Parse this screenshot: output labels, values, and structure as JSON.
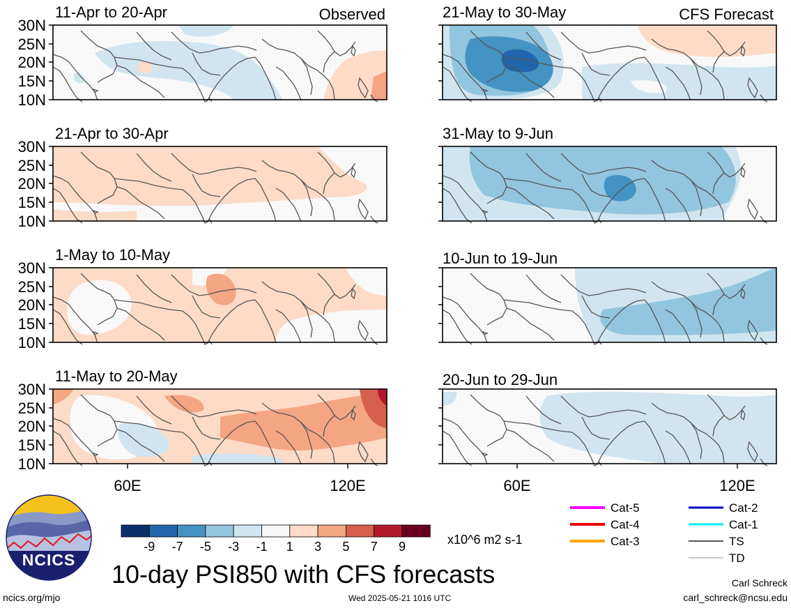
{
  "figure": {
    "title": "10-day PSI850 with CFS forecasts",
    "left_header": "Observed",
    "right_header": "CFS Forecast",
    "author": "Carl Schreck",
    "email": "carl_schreck@ncsu.edu",
    "site": "ncics.org/mjo",
    "timestamp": "Wed 2025-05-21 1016 UTC",
    "logo_text": "NCICS",
    "units": "x10^6 m2 s-1"
  },
  "panels": [
    {
      "label": "11-Apr to 20-Apr",
      "column": "observed"
    },
    {
      "label": "21-Apr to 30-Apr",
      "column": "observed"
    },
    {
      "label": "1-May to 10-May",
      "column": "observed"
    },
    {
      "label": "11-May to 20-May",
      "column": "observed"
    },
    {
      "label": "21-May to 30-May",
      "column": "forecast"
    },
    {
      "label": "31-May to 9-Jun",
      "column": "forecast"
    },
    {
      "label": "10-Jun to 19-Jun",
      "column": "forecast"
    },
    {
      "label": "20-Jun to 29-Jun",
      "column": "forecast"
    }
  ],
  "axes": {
    "lat_labels": [
      "30N",
      "25N",
      "20N",
      "15N",
      "10N"
    ],
    "lon_labels": [
      "60E",
      "120E"
    ]
  },
  "colorbar": {
    "labels": [
      "-9",
      "-7",
      "-5",
      "-3",
      "-1",
      "1",
      "3",
      "5",
      "7",
      "9"
    ],
    "colors": [
      "#08306b",
      "#2166ac",
      "#4393c3",
      "#92c5de",
      "#d1e5f0",
      "#f7f7f7",
      "#fddbc7",
      "#f4a582",
      "#d6604d",
      "#b2182b",
      "#67001f"
    ]
  },
  "storm_legend": [
    {
      "label": "Cat-5",
      "color": "#ff00ff"
    },
    {
      "label": "Cat-4",
      "color": "#ee0000"
    },
    {
      "label": "Cat-3",
      "color": "#ffa500"
    },
    {
      "label": "Cat-2",
      "color": "#0000cc"
    },
    {
      "label": "Cat-1",
      "color": "#00eeee"
    },
    {
      "label": "TS",
      "color": "#555555"
    },
    {
      "label": "TD",
      "color": "#aaaaaa"
    }
  ]
}
